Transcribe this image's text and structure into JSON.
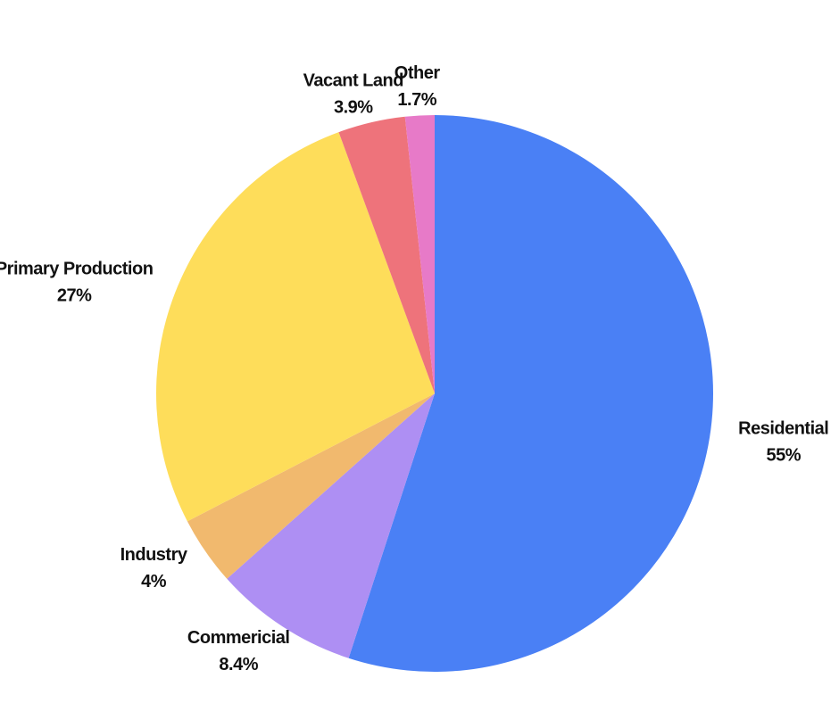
{
  "chart_data": {
    "type": "pie",
    "categories": [
      "Residential",
      "Commericial",
      "Industry",
      "Primary Production",
      "Vacant Land",
      "Other"
    ],
    "values": [
      55,
      8.4,
      4,
      27,
      3.9,
      1.7
    ],
    "value_labels": [
      "55%",
      "8.4%",
      "4%",
      "27%",
      "3.9%",
      "1.7%"
    ],
    "colors": [
      "#4a80f5",
      "#ae8ff3",
      "#f1b96e",
      "#fedd5a",
      "#ee737b",
      "#e77ac8"
    ]
  }
}
